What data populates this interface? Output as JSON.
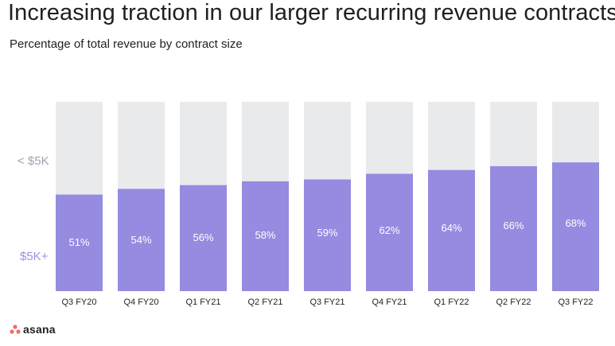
{
  "title": "Increasing traction in our larger recurring revenue contracts",
  "subtitle": "Percentage of total revenue by contract size",
  "logo_text": "asana",
  "colors": {
    "top_segment": "#e8eaec",
    "bottom_segment": "#958be0",
    "logo_dot": "#f06a6a"
  },
  "chart_data": {
    "type": "bar",
    "stacked": true,
    "categories": [
      "Q3 FY20",
      "Q4 FY20",
      "Q1 FY21",
      "Q2 FY21",
      "Q3 FY21",
      "Q4 FY21",
      "Q1 FY22",
      "Q2 FY22",
      "Q3 FY22"
    ],
    "series": [
      {
        "name": "$5K+",
        "values": [
          51,
          54,
          56,
          58,
          59,
          62,
          64,
          66,
          68
        ],
        "labels": [
          "51%",
          "54%",
          "56%",
          "58%",
          "59%",
          "62%",
          "64%",
          "66%",
          "68%"
        ]
      },
      {
        "name": "< $5K",
        "values": [
          49,
          46,
          44,
          42,
          41,
          38,
          36,
          34,
          32
        ]
      }
    ],
    "ylim": [
      0,
      100
    ],
    "grid": false
  }
}
